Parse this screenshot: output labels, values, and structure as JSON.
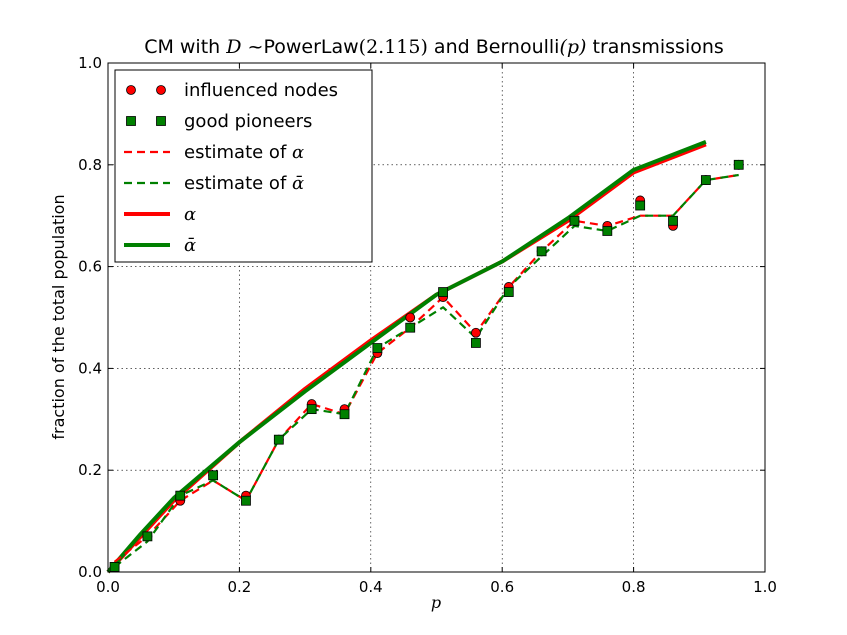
{
  "chart_data": {
    "type": "line",
    "title": {
      "prefix": "CM with ",
      "var": "D",
      "tilde": " ~",
      "dist": "PowerLaw",
      "param": "(2.115)",
      "mid": " and Bernoulli",
      "pparam": "(p)",
      "suffix": " transmissions"
    },
    "xlabel": "p",
    "ylabel": "fraction of the total population",
    "xlim": [
      0.0,
      1.0
    ],
    "ylim": [
      0.0,
      1.0
    ],
    "xticks": [
      "0.0",
      "0.2",
      "0.4",
      "0.6",
      "0.8",
      "1.0"
    ],
    "yticks": [
      "0.0",
      "0.2",
      "0.4",
      "0.6",
      "0.8",
      "1.0"
    ],
    "grid": true,
    "legend_position": "top-left",
    "x": [
      0.01,
      0.06,
      0.11,
      0.16,
      0.21,
      0.26,
      0.31,
      0.36,
      0.41,
      0.46,
      0.51,
      0.56,
      0.61,
      0.66,
      0.71,
      0.76,
      0.81,
      0.86,
      0.91,
      0.96
    ],
    "series": [
      {
        "name": "influenced nodes",
        "style": "circle-markers",
        "color": "#ff0000",
        "values": [
          0.01,
          0.07,
          0.14,
          0.19,
          0.15,
          0.26,
          0.33,
          0.32,
          0.43,
          0.5,
          0.54,
          0.47,
          0.56,
          0.63,
          0.69,
          0.68,
          0.73,
          0.68,
          0.77,
          0.8
        ]
      },
      {
        "name": "good pioneers",
        "style": "square-markers",
        "color": "#008000",
        "values": [
          0.01,
          0.07,
          0.15,
          0.19,
          0.14,
          0.26,
          0.32,
          0.31,
          0.44,
          0.48,
          0.55,
          0.45,
          0.55,
          0.63,
          0.69,
          0.67,
          0.72,
          0.69,
          0.77,
          0.8
        ]
      },
      {
        "name_prefix": "estimate of ",
        "name_symbol": "α",
        "style": "dashed",
        "color": "#ff0000",
        "values": [
          0.02,
          0.07,
          0.14,
          0.18,
          0.14,
          0.26,
          0.33,
          0.31,
          0.43,
          0.48,
          0.54,
          0.47,
          0.56,
          0.63,
          0.69,
          0.68,
          0.7,
          0.7,
          0.77,
          0.78
        ]
      },
      {
        "name_prefix": "estimate of ",
        "name_symbol": "ᾱ",
        "style": "dashed",
        "color": "#008000",
        "values": [
          0.01,
          0.06,
          0.15,
          0.18,
          0.14,
          0.26,
          0.32,
          0.31,
          0.44,
          0.48,
          0.52,
          0.46,
          0.56,
          0.62,
          0.68,
          0.67,
          0.7,
          0.7,
          0.77,
          0.78
        ]
      },
      {
        "name_symbol": "α",
        "style": "solid",
        "color": "#ff0000",
        "x": [
          0.0,
          0.05,
          0.1,
          0.2,
          0.3,
          0.4,
          0.5,
          0.6,
          0.7,
          0.8,
          0.91
        ],
        "values": [
          0.0,
          0.07,
          0.14,
          0.255,
          0.36,
          0.455,
          0.545,
          0.61,
          0.69,
          0.785,
          0.84
        ]
      },
      {
        "name_symbol": "ᾱ",
        "style": "solid",
        "color": "#008000",
        "x": [
          0.0,
          0.05,
          0.1,
          0.2,
          0.3,
          0.4,
          0.5,
          0.6,
          0.7,
          0.8,
          0.91
        ],
        "values": [
          0.0,
          0.075,
          0.145,
          0.255,
          0.355,
          0.45,
          0.545,
          0.61,
          0.695,
          0.79,
          0.845
        ]
      }
    ]
  }
}
